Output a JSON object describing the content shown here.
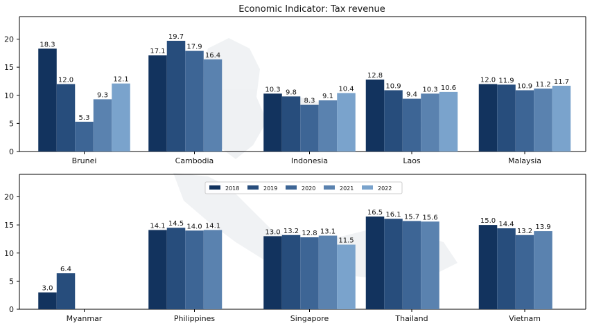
{
  "chart_data": {
    "type": "bar",
    "title": "Economic Indicator: Tax revenue",
    "series_years": [
      "2018",
      "2019",
      "2020",
      "2021",
      "2022"
    ],
    "series_colors": [
      "#12335e",
      "#274d7c",
      "#3d6595",
      "#5a82af",
      "#7aa3cc"
    ],
    "ylim": [
      0,
      24
    ],
    "yticks": [
      0,
      5,
      10,
      15,
      20
    ],
    "grid": false,
    "legend_position": "top-center (lower panel)",
    "panels": [
      {
        "countries": [
          {
            "name": "Brunei",
            "values": [
              18.3,
              12.0,
              5.3,
              9.3,
              12.1
            ],
            "labels": [
              "18.3",
              "12.0",
              "5.3",
              "9.3",
              "12.1"
            ]
          },
          {
            "name": "Cambodia",
            "values": [
              17.1,
              19.7,
              17.9,
              16.4
            ],
            "labels": [
              "17.1",
              "19.7",
              "17.9",
              "16.4"
            ]
          },
          {
            "name": "Indonesia",
            "values": [
              10.3,
              9.8,
              8.3,
              9.1,
              10.4
            ],
            "labels": [
              "10.3",
              "9.8",
              "8.3",
              "9.1",
              "10.4"
            ]
          },
          {
            "name": "Laos",
            "values": [
              12.8,
              10.9,
              9.4,
              10.3,
              10.6
            ],
            "labels": [
              "12.8",
              "10.9",
              "9.4",
              "10.3",
              "10.6"
            ]
          },
          {
            "name": "Malaysia",
            "values": [
              12.0,
              11.9,
              10.9,
              11.2,
              11.7
            ],
            "labels": [
              "12.0",
              "11.9",
              "10.9",
              "11.2",
              "11.7"
            ]
          }
        ]
      },
      {
        "countries": [
          {
            "name": "Myanmar",
            "values": [
              3.0,
              6.4
            ],
            "labels": [
              "3.0",
              "6.4"
            ]
          },
          {
            "name": "Philippines",
            "values": [
              14.1,
              14.5,
              14.0,
              14.1
            ],
            "labels": [
              "14.1",
              "14.5",
              "14.0",
              "14.1"
            ]
          },
          {
            "name": "Singapore",
            "values": [
              13.0,
              13.2,
              12.8,
              13.1,
              11.5
            ],
            "labels": [
              "13.0",
              "13.2",
              "12.8",
              "13.1",
              "11.5"
            ]
          },
          {
            "name": "Thailand",
            "values": [
              16.5,
              16.1,
              15.7,
              15.6
            ],
            "labels": [
              "16.5",
              "16.1",
              "15.7",
              "15.6"
            ]
          },
          {
            "name": "Vietnam",
            "values": [
              15.0,
              14.4,
              13.2,
              13.9
            ],
            "labels": [
              "15.0",
              "14.4",
              "13.2",
              "13.9"
            ]
          }
        ]
      }
    ]
  }
}
